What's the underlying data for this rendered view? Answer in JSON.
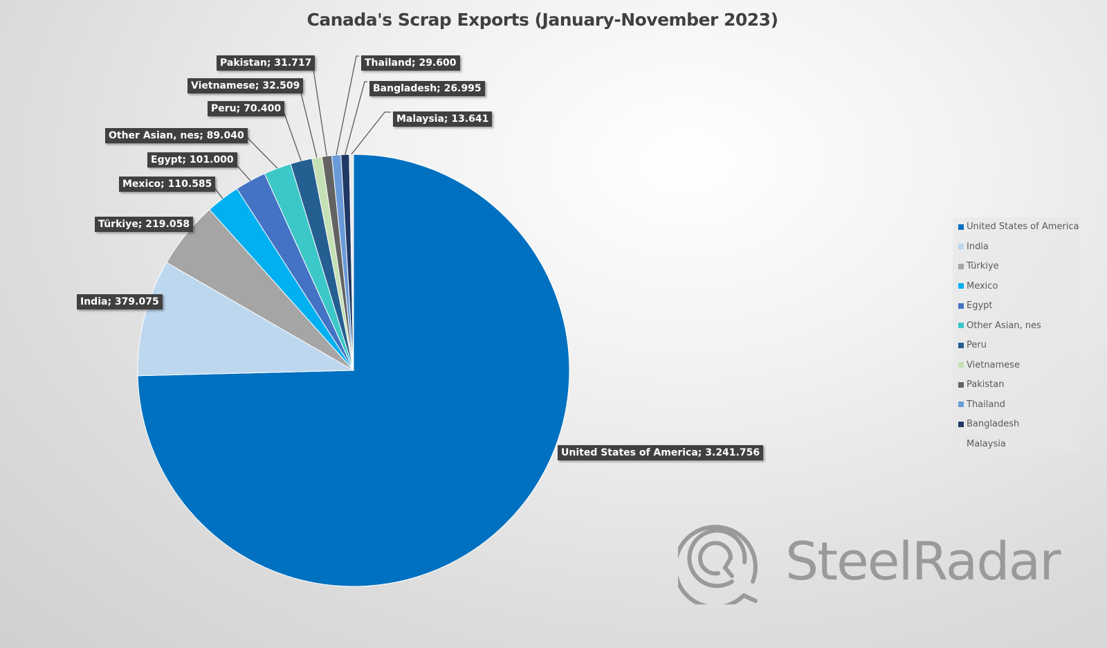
{
  "title": "Canada's Scrap Exports (January-November 2023)",
  "chart_data": {
    "type": "pie",
    "title": "Canada's Scrap Exports (January-November 2023)",
    "categories": [
      "United States of America",
      "India",
      "Türkiye",
      "Mexico",
      "Egypt",
      "Other Asian, nes",
      "Peru",
      "Vietnamese",
      "Pakistan",
      "Thailand",
      "Bangladesh",
      "Malaysia"
    ],
    "values": [
      3241.756,
      379.075,
      219.058,
      110.585,
      101.0,
      89.04,
      70.4,
      32.509,
      31.717,
      29.6,
      26.995,
      13.641
    ],
    "colors": [
      "#0070C0",
      "#BDD7EE",
      "#A5A5A5",
      "#00B0F0",
      "#4472C4",
      "#3CC8C8",
      "#255E91",
      "#C5E0B4",
      "#636363",
      "#6A9BD8",
      "#203864",
      "#E9E9E9"
    ],
    "data_labels": [
      "United States of America; 3.241.756",
      "India; 379.075",
      "Türkiye; 219.058",
      "Mexico; 110.585",
      "Egypt; 101.000",
      "Other Asian, nes; 89.040",
      "Peru; 70.400",
      "Vietnamese; 32.509",
      "Pakistan; 31.717",
      "Thailand; 29.600",
      "Bangladesh; 26.995",
      "Malaysia; 13.641"
    ],
    "legend_position": "right"
  },
  "legend": [
    "United States of America",
    "India",
    "Türkiye",
    "Mexico",
    "Egypt",
    "Other Asian, nes",
    "Peru",
    "Vietnamese",
    "Pakistan",
    "Thailand",
    "Bangladesh",
    "Malaysia"
  ],
  "watermark": "SteelRadar"
}
